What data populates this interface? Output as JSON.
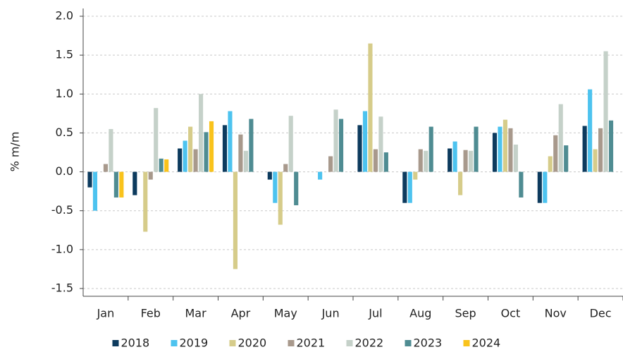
{
  "chart_data": {
    "type": "bar",
    "y_label": "% m/m",
    "categories": [
      "Jan",
      "Feb",
      "Mar",
      "Apr",
      "May",
      "Jun",
      "Jul",
      "Aug",
      "Sep",
      "Oct",
      "Nov",
      "Dec"
    ],
    "series": [
      {
        "name": "2018",
        "color": "#0d3b5e",
        "values": [
          -0.2,
          -0.3,
          0.3,
          0.6,
          -0.1,
          0.0,
          0.6,
          -0.4,
          0.3,
          0.5,
          -0.4,
          0.59
        ]
      },
      {
        "name": "2019",
        "color": "#4dc3ef",
        "values": [
          -0.5,
          0.0,
          0.4,
          0.78,
          -0.4,
          -0.1,
          0.78,
          -0.4,
          0.39,
          0.58,
          -0.4,
          1.06
        ]
      },
      {
        "name": "2020",
        "color": "#d6cc8a",
        "values": [
          0.0,
          -0.77,
          0.58,
          -1.25,
          -0.68,
          0.0,
          1.65,
          -0.1,
          -0.3,
          0.67,
          0.2,
          0.29
        ]
      },
      {
        "name": "2021",
        "color": "#a8998c",
        "values": [
          0.1,
          -0.1,
          0.29,
          0.48,
          0.1,
          0.2,
          0.29,
          0.29,
          0.28,
          0.56,
          0.47,
          0.56
        ]
      },
      {
        "name": "2022",
        "color": "#c5d1c9",
        "values": [
          0.55,
          0.82,
          1.0,
          0.27,
          0.72,
          0.8,
          0.71,
          0.27,
          0.27,
          0.35,
          0.87,
          1.55
        ]
      },
      {
        "name": "2023",
        "color": "#4f8c92",
        "values": [
          -0.33,
          0.17,
          0.51,
          0.68,
          -0.43,
          0.68,
          0.25,
          0.58,
          0.58,
          -0.33,
          0.34,
          0.66
        ]
      },
      {
        "name": "2024",
        "color": "#f9c31c",
        "values": [
          -0.33,
          0.16,
          0.65,
          null,
          null,
          null,
          null,
          null,
          null,
          null,
          null,
          null
        ]
      }
    ],
    "ylim": [
      -1.6,
      2.1
    ],
    "yticks": [
      {
        "value": -1.5,
        "label": "-1.5"
      },
      {
        "value": -1.0,
        "label": "-1.0"
      },
      {
        "value": -0.5,
        "label": "-0.5"
      },
      {
        "value": 0,
        "label": "0.0"
      },
      {
        "value": 0.5,
        "label": "0.5"
      },
      {
        "value": 1.0,
        "label": "1.0"
      },
      {
        "value": 1.5,
        "label": "1.5"
      },
      {
        "value": 2.0,
        "label": "2.0"
      }
    ],
    "grid": true,
    "legend": "bottom"
  }
}
